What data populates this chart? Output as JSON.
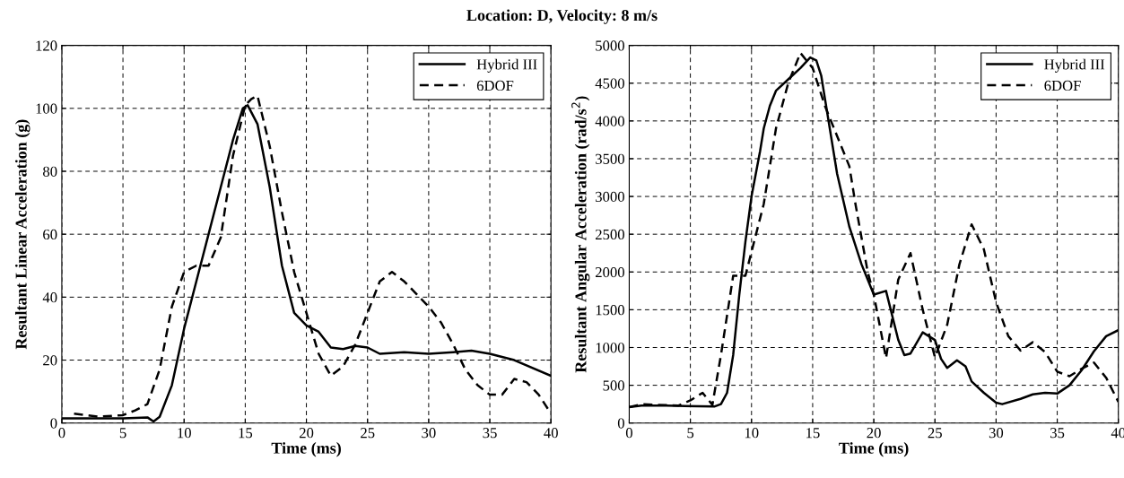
{
  "chart_data": [
    {
      "type": "line",
      "title": "Location: D, Velocity: 8 m/s",
      "xlabel": "Time (ms)",
      "ylabel": "Resultant Linear Acceleration (g)",
      "xlim": [
        0,
        40
      ],
      "ylim": [
        0,
        120
      ],
      "xticks": [
        0,
        5,
        10,
        15,
        20,
        25,
        30,
        35,
        40
      ],
      "yticks": [
        0,
        20,
        40,
        60,
        80,
        100,
        120
      ],
      "grid": true,
      "legend": "top right",
      "series": [
        {
          "name": "Hybrid III",
          "color": "#000000",
          "line_style": "solid",
          "x": [
            0,
            2,
            5,
            7,
            7.5,
            8,
            9,
            10,
            11,
            12,
            13,
            14,
            14.8,
            15.2,
            16,
            17,
            18,
            19,
            20,
            21,
            22,
            23,
            24,
            25,
            26,
            28,
            30,
            32,
            33.5,
            35,
            37,
            40
          ],
          "values": [
            1.5,
            1.5,
            1.5,
            1.8,
            0.5,
            2,
            12,
            30,
            45,
            60,
            75,
            90,
            100,
            101,
            95,
            75,
            50,
            35,
            31,
            29,
            24,
            23.5,
            24.5,
            24,
            22,
            22.5,
            22,
            22.5,
            23,
            22,
            20,
            15
          ]
        },
        {
          "name": "6DOF",
          "color": "#000000",
          "line_style": "dashed",
          "x": [
            1,
            3,
            5,
            6,
            7,
            8,
            9,
            10,
            11,
            12,
            13,
            14,
            15,
            15.5,
            16,
            17,
            18,
            19,
            20,
            21,
            22,
            23,
            24,
            25,
            26,
            27,
            28,
            29,
            30,
            31,
            32,
            33,
            34,
            35,
            36,
            37,
            38,
            39,
            40
          ],
          "values": [
            3,
            2,
            2.5,
            4,
            6,
            17,
            37,
            48,
            50,
            50,
            59,
            85,
            101,
            103,
            104,
            88,
            67,
            48,
            35,
            22,
            15,
            18,
            25,
            35,
            45,
            48,
            45,
            41,
            37,
            32,
            25,
            17,
            12,
            9,
            9,
            14,
            13,
            9,
            3
          ]
        }
      ]
    },
    {
      "type": "line",
      "xlabel": "Time (ms)",
      "ylabel": "Resultant Angular Acceleration (rad/s$^{2}$)",
      "xlim": [
        0,
        40
      ],
      "ylim": [
        0,
        5000
      ],
      "xticks": [
        0,
        5,
        10,
        15,
        20,
        25,
        30,
        35,
        40
      ],
      "yticks": [
        0,
        500,
        1000,
        1500,
        2000,
        2500,
        3000,
        3500,
        4000,
        4500,
        5000
      ],
      "grid": true,
      "legend": "top right",
      "series": [
        {
          "name": "Hybrid III",
          "color": "#000000",
          "line_style": "solid",
          "x": [
            0,
            1,
            3,
            7,
            7.5,
            8,
            8.5,
            9,
            9.5,
            10,
            10.7,
            11,
            11.5,
            12,
            13,
            14,
            14.8,
            15.3,
            15.7,
            16,
            17,
            18,
            19,
            20,
            21,
            22,
            22.5,
            23,
            24,
            25,
            25.5,
            26,
            26.8,
            27.5,
            28,
            29,
            30,
            30.5,
            32,
            33,
            34,
            35,
            36,
            37,
            38,
            39,
            40
          ],
          "values": [
            210,
            230,
            230,
            220,
            250,
            400,
            900,
            1700,
            2400,
            3000,
            3600,
            3900,
            4200,
            4400,
            4550,
            4700,
            4840,
            4800,
            4600,
            4300,
            3300,
            2600,
            2100,
            1700,
            1750,
            1100,
            900,
            920,
            1200,
            1100,
            850,
            730,
            830,
            750,
            550,
            400,
            270,
            250,
            320,
            380,
            400,
            390,
            500,
            700,
            950,
            1150,
            1230
          ]
        },
        {
          "name": "6DOF",
          "color": "#000000",
          "line_style": "dashed",
          "x": [
            0,
            1,
            4,
            5,
            6,
            6.8,
            7.5,
            8.5,
            9.5,
            11,
            12,
            13,
            14,
            15,
            16,
            17,
            17.5,
            18,
            18.5,
            19.5,
            20,
            21,
            22,
            23,
            24,
            25,
            26,
            27,
            28,
            29,
            30,
            31,
            32,
            33,
            34,
            35,
            36,
            37,
            38,
            39,
            40
          ],
          "values": [
            210,
            250,
            230,
            300,
            400,
            240,
            900,
            1950,
            1950,
            2900,
            3900,
            4500,
            4900,
            4700,
            4200,
            3800,
            3600,
            3400,
            2900,
            2000,
            1700,
            860,
            1900,
            2250,
            1500,
            870,
            1300,
            2100,
            2630,
            2300,
            1600,
            1150,
            960,
            1070,
            940,
            680,
            620,
            720,
            800,
            600,
            280
          ]
        }
      ]
    }
  ]
}
